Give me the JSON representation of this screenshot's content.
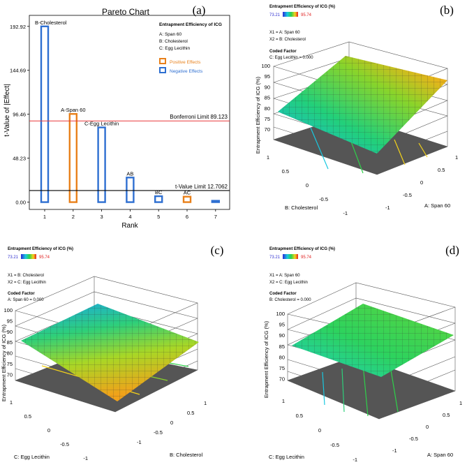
{
  "panels": {
    "a": {
      "letter": "(a)"
    },
    "b": {
      "letter": "(b)",
      "legend_title": "Entrapment Efficiency of ICG (%)",
      "legend_min": "73.21",
      "legend_max": "95.74",
      "x1": "X1 = A: Span 60",
      "x2": "X2 = B: Cholesterol",
      "coded_title": "Coded Factor",
      "coded_value": "C: Egg Lecithin = 0.000",
      "zlabel": "Entrapment Efficiency of ICG (%)",
      "left_axis": "B: Cholesterol",
      "right_axis": "A: Span 60"
    },
    "c": {
      "letter": "(c)",
      "legend_title": "Entrapment Efficiency of ICG (%)",
      "legend_min": "73.21",
      "legend_max": "95.74",
      "x1": "X1 = B: Cholesterol",
      "x2": "X2 = C: Egg Lecithin",
      "coded_title": "Coded Factor",
      "coded_value": "A: Span 60 = 0.000",
      "zlabel": "Entrapment Efficiency of ICG (%)",
      "left_axis": "C: Egg Lecithin",
      "right_axis": "B: Cholesterol"
    },
    "d": {
      "letter": "(d)",
      "legend_title": "Entrapment Efficiency of ICG (%)",
      "legend_min": "73.21",
      "legend_max": "95.74",
      "x1": "X1 = A: Span 60",
      "x2": "X2 = C: Egg Lecithin",
      "coded_title": "Coded Factor",
      "coded_value": "B: Cholesterol = 0.000",
      "zlabel": "Entrapment Efficiency of ICG (%)",
      "left_axis": "C: Egg Lecithin",
      "right_axis": "A: Span 60"
    }
  },
  "surface_ticks": {
    "z_b": [
      "100",
      "95",
      "90",
      "85",
      "80",
      "75",
      "70"
    ],
    "z_c": [
      "100",
      "95",
      "90",
      "85",
      "80",
      "75",
      "70"
    ],
    "z_d": [
      "100",
      "95",
      "90",
      "85",
      "80",
      "75",
      "70"
    ],
    "axis": [
      "1",
      "0.5",
      "0",
      "-0.5",
      "-1"
    ]
  },
  "chart_data": [
    {
      "type": "bar",
      "title": "Pareto Chart",
      "xlabel": "Rank",
      "ylabel": "t-Value of |Effect|",
      "categories": [
        "1",
        "2",
        "3",
        "4",
        "5",
        "6",
        "7"
      ],
      "bar_labels": [
        "B-Cholesterol",
        "A-Span 60",
        "C-Egg Lecithin",
        "AB",
        "BC",
        "AC",
        ""
      ],
      "values": [
        192.92,
        96.8,
        82.0,
        27.0,
        6.5,
        6.0,
        1.5
      ],
      "effect_sign": [
        "negative",
        "positive",
        "negative",
        "negative",
        "negative",
        "positive",
        "negative"
      ],
      "yticks": [
        "0.00",
        "48.23",
        "96.46",
        "144.69",
        "192.92"
      ],
      "ylim": [
        -8,
        205
      ],
      "bonferroni_limit": 89.123,
      "bonferroni_label": "Bonferroni Limit 89.123",
      "t_value_limit": 12.7062,
      "t_value_label": "t-Value Limit 12.7062",
      "legend": {
        "title": "Entrapment Efficiency of ICG",
        "factors": [
          "A: Span 60",
          "B: Cholesterol",
          "C: Egg Lecithin"
        ],
        "positive": "Positive Effects",
        "negative": "Negative Effects"
      },
      "colors": {
        "positive": "#e8801a",
        "negative": "#2e6fd1",
        "bonferroni": "#e8393a",
        "tlimit": "#000000"
      }
    },
    {
      "type": "surface",
      "panel": "b",
      "zlabel": "Entrapment Efficiency of ICG (%)",
      "xlabel": "A: Span 60",
      "ylabel": "B: Cholesterol",
      "zlim": [
        70,
        100
      ],
      "z_range_observed": [
        73.21,
        95.74
      ]
    },
    {
      "type": "surface",
      "panel": "c",
      "zlabel": "Entrapment Efficiency of ICG (%)",
      "xlabel": "B: Cholesterol",
      "ylabel": "C: Egg Lecithin",
      "zlim": [
        70,
        100
      ],
      "z_range_observed": [
        73.21,
        95.74
      ]
    },
    {
      "type": "surface",
      "panel": "d",
      "zlabel": "Entrapment Efficiency of ICG (%)",
      "xlabel": "A: Span 60",
      "ylabel": "C: Egg Lecithin",
      "zlim": [
        70,
        100
      ],
      "z_range_observed": [
        73.21,
        95.74
      ]
    }
  ]
}
